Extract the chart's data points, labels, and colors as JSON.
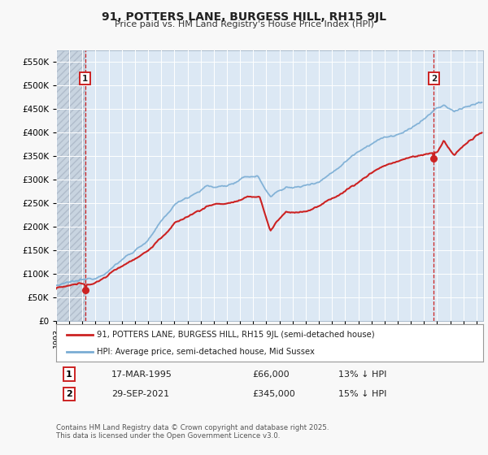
{
  "title": "91, POTTERS LANE, BURGESS HILL, RH15 9JL",
  "subtitle": "Price paid vs. HM Land Registry's House Price Index (HPI)",
  "legend_line1": "91, POTTERS LANE, BURGESS HILL, RH15 9JL (semi-detached house)",
  "legend_line2": "HPI: Average price, semi-detached house, Mid Sussex",
  "footer": "Contains HM Land Registry data © Crown copyright and database right 2025.\nThis data is licensed under the Open Government Licence v3.0.",
  "red_color": "#cc2222",
  "blue_color": "#7aadd4",
  "bg_color": "#f8f8f8",
  "plot_bg": "#dce8f4",
  "grid_color": "#ffffff",
  "vline_color": "#cc2222",
  "hatch_color": "#c8d4e0",
  "ylim": [
    0,
    575000
  ],
  "yticks": [
    0,
    50000,
    100000,
    150000,
    200000,
    250000,
    300000,
    350000,
    400000,
    450000,
    500000,
    550000
  ],
  "x_start": 1993.0,
  "x_end": 2025.5,
  "xticks": [
    1993,
    1994,
    1995,
    1996,
    1997,
    1998,
    1999,
    2000,
    2001,
    2002,
    2003,
    2004,
    2005,
    2006,
    2007,
    2008,
    2009,
    2010,
    2011,
    2012,
    2013,
    2014,
    2015,
    2016,
    2017,
    2018,
    2019,
    2020,
    2021,
    2022,
    2023,
    2024,
    2025
  ],
  "ann1_x": 1995.21,
  "ann1_y": 66000,
  "ann2_x": 2021.75,
  "ann2_y": 345000,
  "ann1_label": "1",
  "ann2_label": "2",
  "ann1_date": "17-MAR-1995",
  "ann1_price": "£66,000",
  "ann1_hpi": "13% ↓ HPI",
  "ann2_date": "29-SEP-2021",
  "ann2_price": "£345,000",
  "ann2_hpi": "15% ↓ HPI"
}
